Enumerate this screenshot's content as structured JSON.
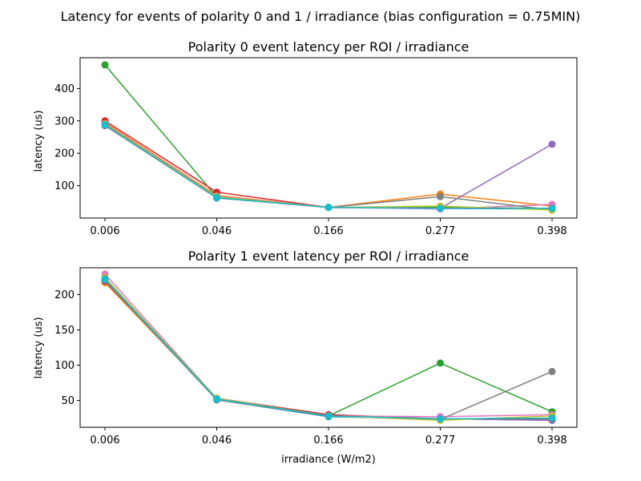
{
  "figure": {
    "suptitle": "Latency for events of polarity 0 and 1 / irradiance (bias configuration = 0.75MIN)"
  },
  "chart_data": [
    {
      "type": "line",
      "title": "Polarity 0 event latency per ROI / irradiance",
      "xlabel": "",
      "ylabel": "latency (us)",
      "categories": [
        "0.006",
        "0.046",
        "0.166",
        "0.277",
        "0.398"
      ],
      "ylim": [
        0,
        495
      ],
      "yticks": [
        100,
        200,
        300,
        400
      ],
      "grid": false,
      "series": [
        {
          "color": "#1f77b4",
          "values": [
            287,
            62,
            33,
            30,
            28
          ]
        },
        {
          "color": "#ff7f0e",
          "values": [
            295,
            70,
            33,
            74,
            37
          ]
        },
        {
          "color": "#2ca02c",
          "values": [
            473,
            65,
            33,
            33,
            30
          ]
        },
        {
          "color": "#d62728",
          "values": [
            300,
            80,
            33,
            30,
            30
          ]
        },
        {
          "color": "#9467bd",
          "values": [
            290,
            65,
            33,
            30,
            228
          ]
        },
        {
          "color": "#8c564b",
          "values": [
            290,
            65,
            33,
            30,
            30
          ]
        },
        {
          "color": "#e377c2",
          "values": [
            292,
            68,
            33,
            28,
            42
          ]
        },
        {
          "color": "#7f7f7f",
          "values": [
            285,
            62,
            33,
            66,
            25
          ]
        },
        {
          "color": "#bcbd22",
          "values": [
            290,
            66,
            33,
            37,
            25
          ]
        },
        {
          "color": "#17becf",
          "values": [
            288,
            63,
            33,
            30,
            30
          ]
        }
      ]
    },
    {
      "type": "line",
      "title": "Polarity 1 event latency per ROI / irradiance",
      "xlabel": "irradiance (W/m2)",
      "ylabel": "latency (us)",
      "categories": [
        "0.006",
        "0.046",
        "0.166",
        "0.277",
        "0.398"
      ],
      "ylim": [
        12,
        238
      ],
      "yticks": [
        50,
        100,
        150,
        200
      ],
      "grid": false,
      "series": [
        {
          "color": "#1f77b4",
          "values": [
            220,
            51,
            27,
            24,
            22
          ]
        },
        {
          "color": "#ff7f0e",
          "values": [
            217,
            52,
            28,
            24,
            24
          ]
        },
        {
          "color": "#2ca02c",
          "values": [
            222,
            52,
            28,
            103,
            34
          ]
        },
        {
          "color": "#d62728",
          "values": [
            219,
            53,
            30,
            24,
            24
          ]
        },
        {
          "color": "#9467bd",
          "values": [
            223,
            52,
            28,
            24,
            22
          ]
        },
        {
          "color": "#8c564b",
          "values": [
            221,
            51,
            28,
            24,
            24
          ]
        },
        {
          "color": "#e377c2",
          "values": [
            229,
            53,
            28,
            27,
            30
          ]
        },
        {
          "color": "#7f7f7f",
          "values": [
            220,
            51,
            28,
            23,
            91
          ]
        },
        {
          "color": "#bcbd22",
          "values": [
            224,
            53,
            28,
            22,
            28
          ]
        },
        {
          "color": "#17becf",
          "values": [
            222,
            52,
            28,
            24,
            25
          ]
        }
      ]
    }
  ]
}
